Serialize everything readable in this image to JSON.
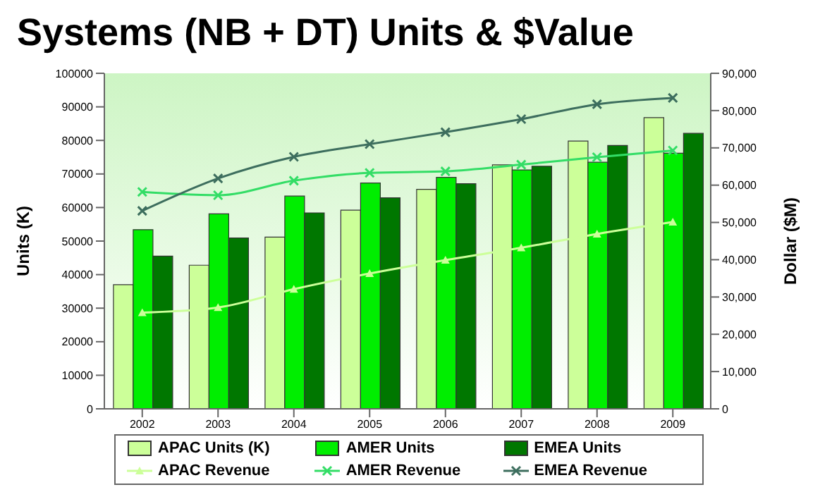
{
  "chart_data": {
    "type": "bar",
    "title": "Systems (NB + DT) Units & $Value",
    "ylabel": "Units (K)",
    "y2label": "Dollar ($M)",
    "categories": [
      "2002",
      "2003",
      "2004",
      "2005",
      "2006",
      "2007",
      "2008",
      "2009"
    ],
    "series": [
      {
        "name": "APAC Units (K)",
        "color": "#ccff99",
        "values": [
          37000,
          42800,
          51200,
          59200,
          65400,
          72700,
          79800,
          86800
        ]
      },
      {
        "name": "AMER Units",
        "color": "#00ee00",
        "values": [
          53400,
          58100,
          63400,
          67300,
          69000,
          71200,
          73500,
          76200
        ]
      },
      {
        "name": "EMEA Units",
        "color": "#007700",
        "values": [
          45500,
          50900,
          58400,
          62900,
          67100,
          72300,
          78500,
          82100
        ]
      },
      {
        "name": "APAC Revenue",
        "type": "line",
        "axis": "y2",
        "color": "#ccff99",
        "marker": "triangle",
        "values": [
          25800,
          27200,
          32100,
          36300,
          39900,
          43200,
          46900,
          50100
        ]
      },
      {
        "name": "AMER Revenue",
        "type": "line",
        "axis": "y2",
        "color": "#33dd66",
        "marker": "cross",
        "values": [
          58200,
          57300,
          61200,
          63300,
          63700,
          65500,
          67500,
          69300
        ]
      },
      {
        "name": "EMEA Revenue",
        "type": "line",
        "axis": "y2",
        "color": "#3d6e5e",
        "marker": "cross",
        "values": [
          53100,
          61800,
          67600,
          71000,
          74200,
          77700,
          81700,
          83400
        ]
      }
    ],
    "ylim": [
      0,
      100000
    ],
    "yticks": [
      0,
      10000,
      20000,
      30000,
      40000,
      50000,
      60000,
      70000,
      80000,
      90000,
      100000
    ],
    "y2lim": [
      0,
      90000
    ],
    "y2ticks": [
      {
        "value": 0,
        "label": "0"
      },
      {
        "value": 10000,
        "label": "10,000"
      },
      {
        "value": 20000,
        "label": "20,000"
      },
      {
        "value": 30000,
        "label": "30,000"
      },
      {
        "value": 40000,
        "label": "40,000"
      },
      {
        "value": 50000,
        "label": "50,000"
      },
      {
        "value": 60000,
        "label": "60,000"
      },
      {
        "value": 70000,
        "label": "70,000"
      },
      {
        "value": 80000,
        "label": "80,000"
      },
      {
        "value": 90000,
        "label": "90,000"
      }
    ],
    "grid": false,
    "legend": "bottom"
  }
}
